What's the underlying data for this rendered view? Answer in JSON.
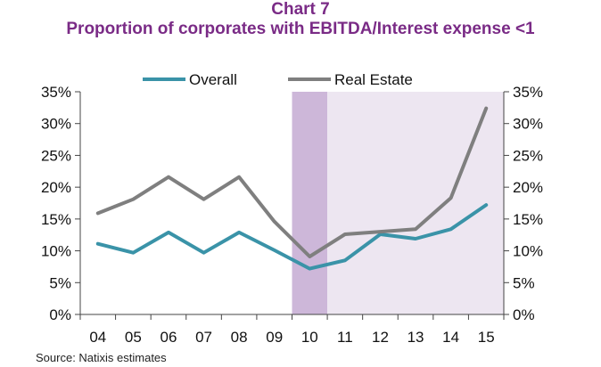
{
  "header": {
    "title": "Chart 7",
    "subtitle": "Proportion of corporates with EBITDA/Interest expense <1"
  },
  "footer": {
    "source": "Source: Natixis estimates"
  },
  "colors": {
    "title": "#7a2b86",
    "overall": "#3a93a8",
    "real_estate": "#7f7f7f",
    "shade_dark": "#cdb7d9",
    "shade_light": "#ede6f1"
  },
  "chart_data": {
    "type": "line",
    "categories": [
      "04",
      "05",
      "06",
      "07",
      "08",
      "09",
      "10",
      "11",
      "12",
      "13",
      "14",
      "15"
    ],
    "series": [
      {
        "name": "Overall",
        "values": [
          11.1,
          9.7,
          12.9,
          9.7,
          12.9,
          10.1,
          7.2,
          8.5,
          12.6,
          11.9,
          13.4,
          17.2
        ]
      },
      {
        "name": "Real Estate",
        "values": [
          15.9,
          18.1,
          21.6,
          18.1,
          21.6,
          14.6,
          9.1,
          12.6,
          13.0,
          13.4,
          18.3,
          32.4
        ]
      }
    ],
    "ylim": [
      0,
      35
    ],
    "yticks": [
      "0%",
      "5%",
      "10%",
      "15%",
      "20%",
      "25%",
      "30%",
      "35%"
    ],
    "y2ticks": [
      "0%",
      "5%",
      "10%",
      "15%",
      "20%",
      "25%",
      "30%",
      "35%"
    ],
    "shaded_regions": [
      {
        "from": "10",
        "to": "11",
        "style": "dark"
      },
      {
        "from": "11",
        "to": "15",
        "style": "light"
      }
    ],
    "legend_position": "top",
    "grid": false
  }
}
